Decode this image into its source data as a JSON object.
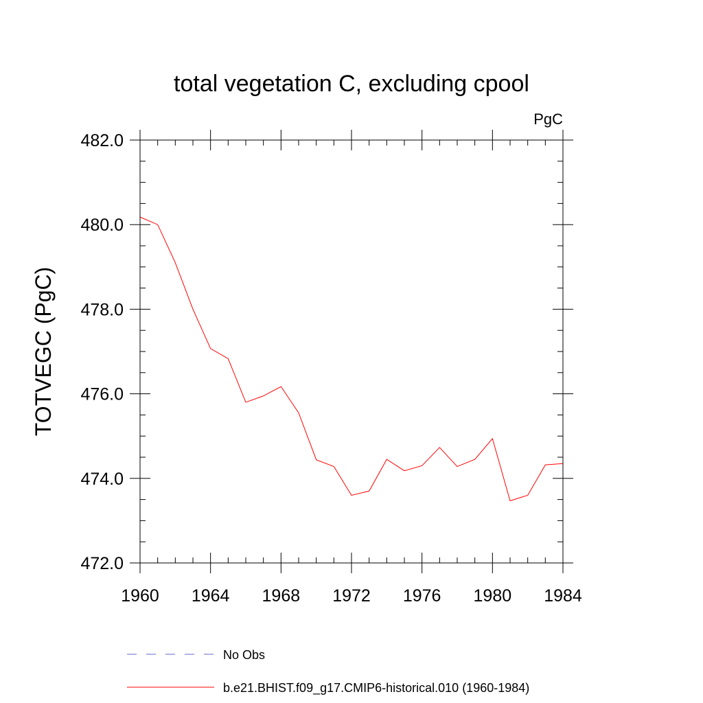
{
  "chart_data": {
    "type": "line",
    "title": "total vegetation C, excluding cpool",
    "units": "PgC",
    "ylabel": "TOTVEGC  (PgC)",
    "xlabel": "",
    "xlim": [
      1960,
      1984
    ],
    "ylim": [
      472.0,
      482.0
    ],
    "x_major_ticks": [
      1960,
      1964,
      1968,
      1972,
      1976,
      1980,
      1984
    ],
    "x_tick_labels": [
      "1960",
      "1964",
      "1968",
      "1972",
      "1976",
      "1980",
      "1984"
    ],
    "y_major_ticks": [
      472.0,
      474.0,
      476.0,
      478.0,
      480.0,
      482.0
    ],
    "y_tick_labels": [
      "472.0",
      "474.0",
      "476.0",
      "478.0",
      "480.0",
      "482.0"
    ],
    "grid": false,
    "legend_position": "bottom",
    "series": [
      {
        "name": "No Obs",
        "color": "#6666cc",
        "dash": "dashed",
        "x": [],
        "values": []
      },
      {
        "name": "b.e21.BHIST.f09_g17.CMIP6-historical.010 (1960-1984)",
        "color": "#ff0000",
        "dash": "solid",
        "x": [
          1960,
          1961,
          1962,
          1963,
          1964,
          1965,
          1966,
          1967,
          1968,
          1969,
          1970,
          1971,
          1972,
          1973,
          1974,
          1975,
          1976,
          1977,
          1978,
          1979,
          1980,
          1981,
          1982,
          1983,
          1984
        ],
        "values": [
          480.18,
          480.0,
          479.1,
          478.0,
          477.07,
          476.83,
          475.8,
          475.95,
          476.17,
          475.55,
          474.44,
          474.28,
          473.6,
          473.7,
          474.45,
          474.18,
          474.3,
          474.73,
          474.28,
          474.45,
          474.94,
          473.47,
          473.6,
          474.32,
          474.35
        ]
      }
    ]
  }
}
